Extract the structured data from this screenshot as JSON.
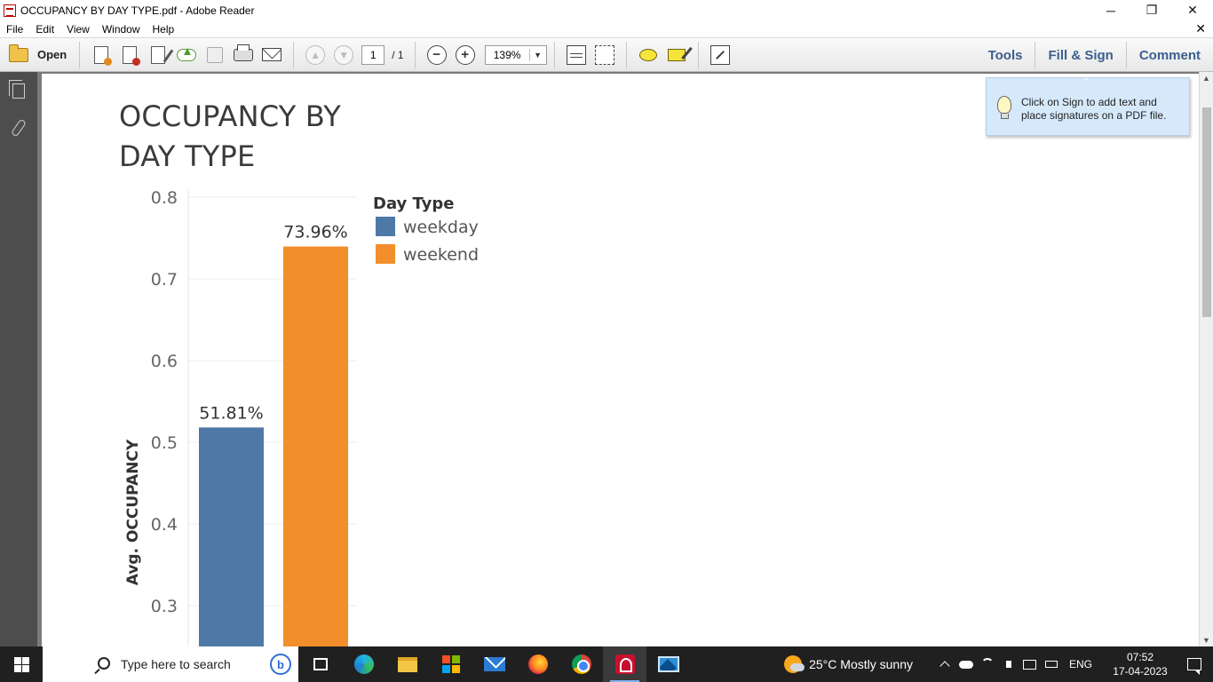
{
  "window": {
    "title": "OCCUPANCY BY DAY TYPE.pdf - Adobe Reader",
    "minimize": "─",
    "restore": "❐",
    "close": "✕"
  },
  "menu": {
    "items": [
      "File",
      "Edit",
      "View",
      "Window",
      "Help"
    ],
    "close": "✕"
  },
  "toolbar": {
    "open_label": "Open",
    "page_current": "1",
    "page_total": "/ 1",
    "zoom": "139%",
    "zoom_arrow": "▼",
    "prev_page": "▲",
    "next_page": "▼",
    "zoom_out": "−",
    "zoom_in": "+",
    "tools_label": "Tools",
    "fill_sign_label": "Fill & Sign",
    "comment_label": "Comment"
  },
  "tooltip": {
    "caret": "⌃",
    "text": "Click on Sign to add text and place signatures on a PDF file."
  },
  "chart_data": {
    "type": "bar",
    "title": "OCCUPANCY BY DAY TYPE",
    "ylabel": "Avg. OCCUPANCY",
    "xlabel": "",
    "categories": [
      "weekday",
      "weekend"
    ],
    "values": [
      0.5181,
      0.7396
    ],
    "value_labels": [
      "51.81%",
      "73.96%"
    ],
    "colors": [
      "#4e79a7",
      "#f28e2b"
    ],
    "yticks": [
      "0.8",
      "0.7",
      "0.6",
      "0.5",
      "0.4",
      "0.3"
    ],
    "ylim": [
      0.2,
      0.8
    ],
    "visible_ymin": 0.24,
    "legend": {
      "title": "Day Type",
      "position": "top-right",
      "items": [
        "weekday",
        "weekend"
      ]
    },
    "grid": true
  },
  "scrollbar": {
    "up": "▲",
    "down": "▼"
  },
  "taskbar": {
    "search_placeholder": "Type here to search",
    "bing_label": "b",
    "weather": "25°C  Mostly sunny",
    "language": "ENG",
    "time": "07:52",
    "date": "17-04-2023"
  }
}
